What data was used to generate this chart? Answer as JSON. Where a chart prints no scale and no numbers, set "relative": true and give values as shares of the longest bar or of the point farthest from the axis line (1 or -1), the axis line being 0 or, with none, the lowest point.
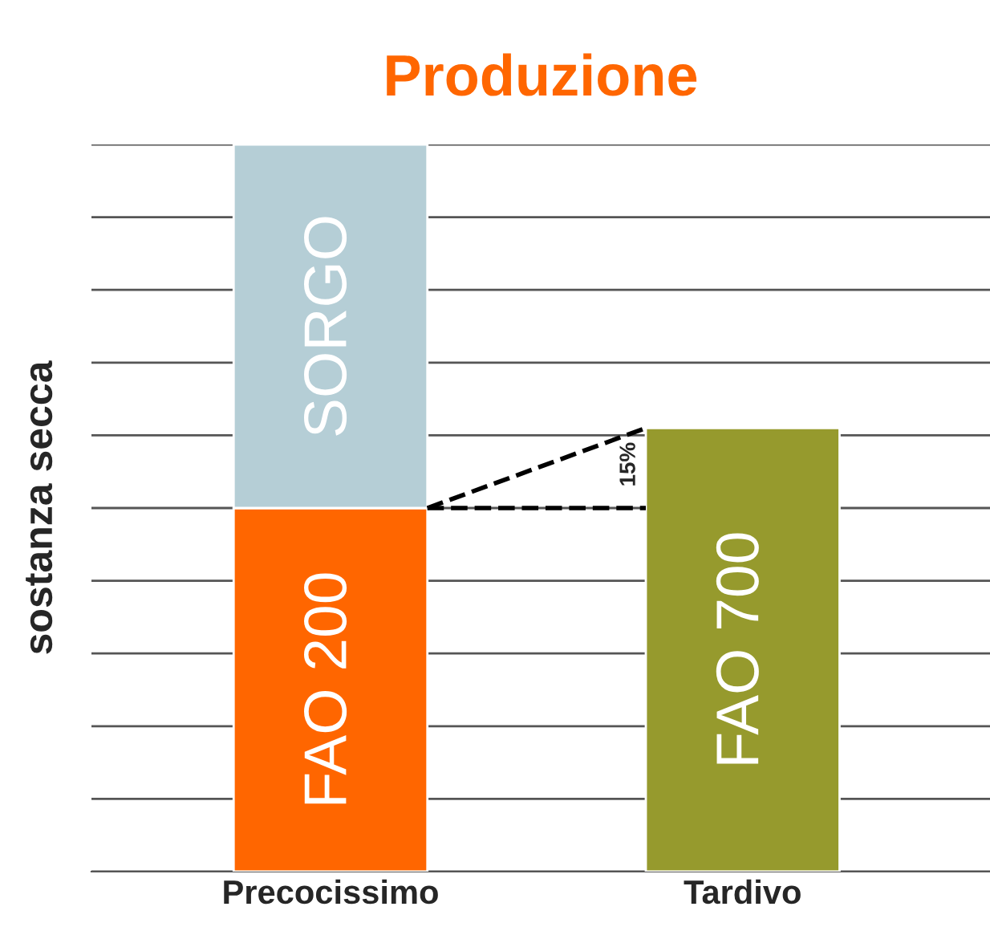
{
  "chart_data": {
    "type": "bar",
    "title": "Produzione",
    "ylabel": "sostanza secca",
    "categories": [
      "Precocissimo",
      "Tardivo"
    ],
    "stacked": true,
    "relative": true,
    "grid": "y",
    "legend": false,
    "series": [
      {
        "name": "FAO 200",
        "color": "#ff6600",
        "values": [
          0.5,
          null
        ]
      },
      {
        "name": "SORGO",
        "color": "#b5ced6",
        "values": [
          0.5,
          null
        ]
      },
      {
        "name": "FAO 700",
        "color": "#969a2d",
        "values": [
          null,
          0.61
        ]
      }
    ],
    "annotations": [
      "15%"
    ]
  }
}
